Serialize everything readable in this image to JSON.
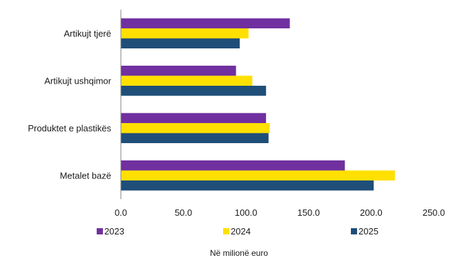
{
  "chart_data": {
    "type": "bar",
    "orientation": "horizontal",
    "categories": [
      "Artikujt tjerë",
      "Artikujt ushqimor",
      "Produktet e plastikës",
      "Metalet bazë"
    ],
    "series": [
      {
        "name": "2023",
        "color": "#7030A0",
        "values": [
          135,
          92,
          116,
          179
        ]
      },
      {
        "name": "2024",
        "color": "#FFE000",
        "values": [
          102,
          105,
          119,
          219
        ]
      },
      {
        "name": "2025",
        "color": "#1F4E79",
        "values": [
          95,
          116,
          118,
          202
        ]
      }
    ],
    "x_ticks": [
      "0.0",
      "50.0",
      "100.0",
      "150.0",
      "200.0",
      "250.0"
    ],
    "xlim": [
      0,
      250
    ],
    "xlabel": "Në milionë euro",
    "grid": false,
    "legend_position": "bottom"
  }
}
